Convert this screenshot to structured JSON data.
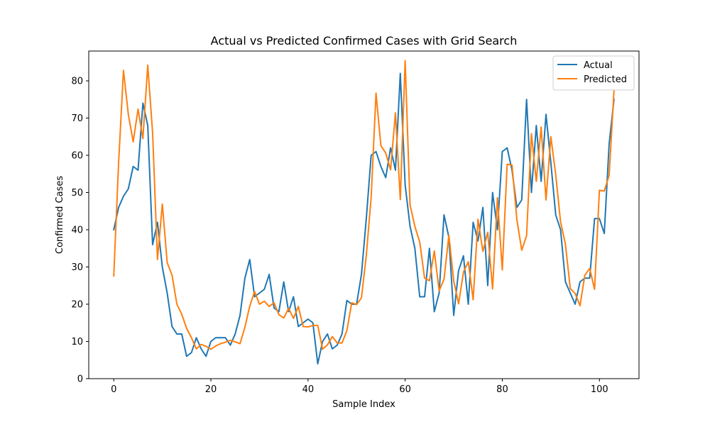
{
  "chart_data": {
    "type": "line",
    "title": "Actual vs Predicted Confirmed Cases with Grid Search",
    "xlabel": "Sample Index",
    "ylabel": "Confirmed Cases",
    "xlim": [
      -5.15,
      108.15
    ],
    "ylim": [
      0,
      88
    ],
    "xticks": [
      0,
      20,
      40,
      60,
      80,
      100
    ],
    "yticks": [
      0,
      10,
      20,
      30,
      40,
      50,
      60,
      70,
      80
    ],
    "grid": false,
    "legend_position": "top-right",
    "series": [
      {
        "name": "Actual",
        "color": "#1f77b4",
        "values": [
          40,
          46,
          49,
          51,
          57,
          56,
          74,
          68,
          36,
          42,
          30,
          23,
          14,
          12,
          12,
          6,
          7,
          11,
          8,
          6,
          10,
          11,
          11,
          11,
          9,
          12,
          17,
          27,
          32,
          22,
          23,
          24,
          28,
          19,
          18,
          26,
          18,
          22,
          14,
          15,
          16,
          15,
          4,
          10,
          12,
          8,
          9,
          12,
          21,
          20,
          20,
          28,
          43,
          60,
          61,
          57,
          54,
          62,
          56,
          82,
          52,
          41,
          35,
          22,
          22,
          35,
          18,
          23,
          44,
          38,
          17,
          29,
          33,
          20,
          42,
          37,
          46,
          25,
          50,
          40,
          61,
          62,
          56,
          46,
          48,
          75,
          50,
          68,
          53,
          71,
          58,
          44,
          40,
          26,
          23,
          20,
          26,
          27,
          27,
          43,
          43,
          39,
          63,
          75
        ]
      },
      {
        "name": "Predicted",
        "color": "#ff7f0e",
        "values": [
          27.6,
          58,
          82.8,
          71,
          63.6,
          72.4,
          64.5,
          84.2,
          66,
          32,
          46.9,
          31.2,
          27.8,
          20,
          17.3,
          13.5,
          11,
          8,
          9.2,
          8.7,
          7.9,
          8.8,
          9.4,
          9.8,
          10.3,
          9.9,
          9.4,
          13.8,
          19.5,
          23.4,
          20,
          20.8,
          19.4,
          20.4,
          17.2,
          16.3,
          18.9,
          16.2,
          19.4,
          14,
          13.9,
          14.3,
          14.3,
          7.9,
          9.1,
          11.3,
          9.6,
          9.6,
          12.9,
          20.4,
          19.9,
          21.7,
          33.1,
          48.7,
          76.7,
          62.6,
          60.6,
          56.1,
          71.4,
          48.1,
          85.4,
          46.7,
          40.9,
          36.7,
          27,
          26.3,
          34.3,
          23.6,
          26.7,
          38.5,
          26.3,
          20.1,
          28.6,
          31.4,
          21.2,
          42.8,
          34.2,
          39.3,
          24.1,
          48.6,
          29.2,
          57.6,
          57.4,
          42.8,
          34.5,
          38.4,
          65.8,
          53,
          67.6,
          48,
          65,
          54.8,
          42.1,
          36.1,
          24.2,
          22.9,
          19.6,
          27.8,
          29.6,
          24,
          50.6,
          50.4,
          54.6,
          77.3
        ]
      }
    ]
  }
}
